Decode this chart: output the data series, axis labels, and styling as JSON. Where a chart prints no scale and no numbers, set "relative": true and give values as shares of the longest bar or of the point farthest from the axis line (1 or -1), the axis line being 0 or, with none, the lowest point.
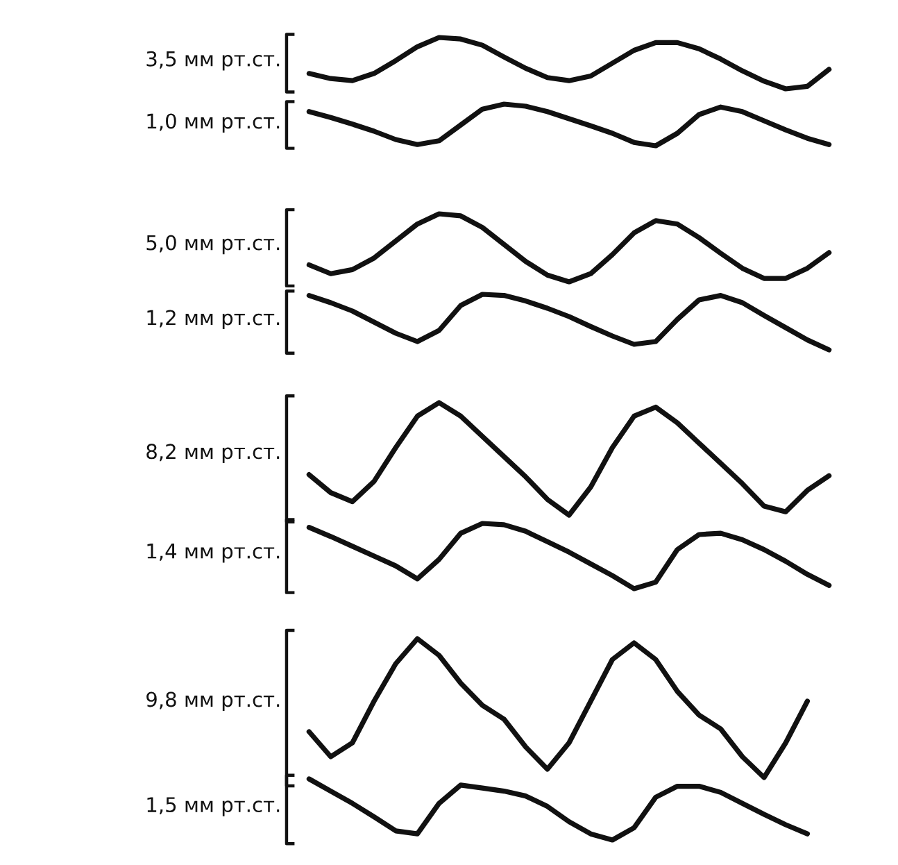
{
  "chart_data": [
    {
      "type": "line",
      "relative": true,
      "ylabel": "3,5 мм рт.ст.",
      "categories": [
        null,
        null,
        null,
        null,
        null,
        null,
        null,
        null,
        null,
        null,
        null,
        null,
        null,
        null,
        null,
        null,
        null,
        null,
        null,
        null,
        null,
        null,
        null,
        null,
        null
      ],
      "series": [
        {
          "color": "#111111",
          "values": [
            0.3,
            0.2,
            0.16,
            0.3,
            0.55,
            0.82,
            1.0,
            0.97,
            0.85,
            0.62,
            0.4,
            0.22,
            0.16,
            0.25,
            0.5,
            0.75,
            0.9,
            0.9,
            0.78,
            0.58,
            0.35,
            0.15,
            0.0,
            0.05,
            0.38
          ]
        }
      ]
    },
    {
      "type": "line",
      "relative": true,
      "ylabel": "1,0 мм рт.ст.",
      "categories": [
        null,
        null,
        null,
        null,
        null,
        null,
        null,
        null,
        null,
        null,
        null,
        null,
        null,
        null,
        null,
        null,
        null,
        null,
        null,
        null,
        null,
        null,
        null,
        null,
        null
      ],
      "series": [
        {
          "color": "#111111",
          "values": [
            0.82,
            0.68,
            0.52,
            0.35,
            0.15,
            0.03,
            0.12,
            0.5,
            0.88,
            1.0,
            0.95,
            0.82,
            0.65,
            0.48,
            0.3,
            0.08,
            0.0,
            0.3,
            0.75,
            0.93,
            0.82,
            0.6,
            0.38,
            0.18,
            0.03
          ]
        }
      ]
    },
    {
      "type": "line",
      "relative": true,
      "ylabel": "5,0 мм рт.ст.",
      "categories": [
        null,
        null,
        null,
        null,
        null,
        null,
        null,
        null,
        null,
        null,
        null,
        null,
        null,
        null,
        null,
        null,
        null,
        null,
        null,
        null,
        null,
        null,
        null,
        null,
        null
      ],
      "series": [
        {
          "color": "#111111",
          "values": [
            0.25,
            0.12,
            0.18,
            0.35,
            0.6,
            0.85,
            1.0,
            0.97,
            0.8,
            0.55,
            0.3,
            0.1,
            0.0,
            0.12,
            0.4,
            0.72,
            0.9,
            0.85,
            0.65,
            0.42,
            0.2,
            0.05,
            0.05,
            0.2,
            0.43
          ]
        }
      ]
    },
    {
      "type": "line",
      "relative": true,
      "ylabel": "1,2 мм рт.ст.",
      "categories": [
        null,
        null,
        null,
        null,
        null,
        null,
        null,
        null,
        null,
        null,
        null,
        null,
        null,
        null,
        null,
        null,
        null,
        null,
        null,
        null,
        null,
        null,
        null,
        null,
        null
      ],
      "series": [
        {
          "color": "#111111",
          "values": [
            0.98,
            0.85,
            0.7,
            0.5,
            0.3,
            0.15,
            0.35,
            0.8,
            1.0,
            0.98,
            0.88,
            0.75,
            0.6,
            0.42,
            0.25,
            0.1,
            0.15,
            0.55,
            0.9,
            0.98,
            0.85,
            0.62,
            0.4,
            0.18,
            0.0
          ]
        }
      ]
    },
    {
      "type": "line",
      "relative": true,
      "ylabel": "8,2 мм рт.ст.",
      "categories": [
        null,
        null,
        null,
        null,
        null,
        null,
        null,
        null,
        null,
        null,
        null,
        null,
        null,
        null,
        null,
        null,
        null,
        null,
        null,
        null,
        null,
        null,
        null,
        null,
        null
      ],
      "series": [
        {
          "color": "#111111",
          "values": [
            0.36,
            0.2,
            0.12,
            0.3,
            0.6,
            0.88,
            1.0,
            0.88,
            0.7,
            0.52,
            0.34,
            0.14,
            0.0,
            0.25,
            0.6,
            0.88,
            0.96,
            0.82,
            0.64,
            0.46,
            0.28,
            0.08,
            0.03,
            0.22,
            0.35
          ]
        }
      ]
    },
    {
      "type": "line",
      "relative": true,
      "ylabel": "1,4 мм рт.ст.",
      "categories": [
        null,
        null,
        null,
        null,
        null,
        null,
        null,
        null,
        null,
        null,
        null,
        null,
        null,
        null,
        null,
        null,
        null,
        null,
        null,
        null,
        null,
        null,
        null,
        null,
        null
      ],
      "series": [
        {
          "color": "#111111",
          "values": [
            0.94,
            0.8,
            0.65,
            0.5,
            0.35,
            0.15,
            0.45,
            0.85,
            1.0,
            0.98,
            0.88,
            0.72,
            0.56,
            0.38,
            0.2,
            0.0,
            0.1,
            0.6,
            0.83,
            0.85,
            0.75,
            0.6,
            0.42,
            0.22,
            0.05
          ]
        }
      ]
    },
    {
      "type": "line",
      "relative": true,
      "ylabel": "9,8 мм рт.ст.",
      "categories": [
        null,
        null,
        null,
        null,
        null,
        null,
        null,
        null,
        null,
        null,
        null,
        null,
        null,
        null,
        null,
        null,
        null,
        null,
        null,
        null,
        null,
        null,
        null,
        null,
        null
      ],
      "series": [
        {
          "color": "#111111",
          "values": [
            0.33,
            0.15,
            0.25,
            0.55,
            0.82,
            1.0,
            0.88,
            0.68,
            0.52,
            0.42,
            0.22,
            0.06,
            0.25,
            0.55,
            0.85,
            0.97,
            0.85,
            0.62,
            0.45,
            0.35,
            0.15,
            0.0,
            0.25,
            0.55,
            null
          ]
        }
      ]
    },
    {
      "type": "line",
      "relative": true,
      "ylabel": "1,5 мм рт.ст.",
      "categories": [
        null,
        null,
        null,
        null,
        null,
        null,
        null,
        null,
        null,
        null,
        null,
        null,
        null,
        null,
        null,
        null,
        null,
        null,
        null,
        null,
        null,
        null,
        null,
        null,
        null
      ],
      "series": [
        {
          "color": "#111111",
          "values": [
            1.0,
            0.8,
            0.6,
            0.38,
            0.15,
            0.1,
            0.6,
            0.9,
            0.85,
            0.8,
            0.72,
            0.55,
            0.3,
            0.1,
            0.0,
            0.2,
            0.7,
            0.88,
            0.88,
            0.78,
            0.6,
            0.42,
            0.25,
            0.1,
            null
          ]
        }
      ]
    }
  ]
}
